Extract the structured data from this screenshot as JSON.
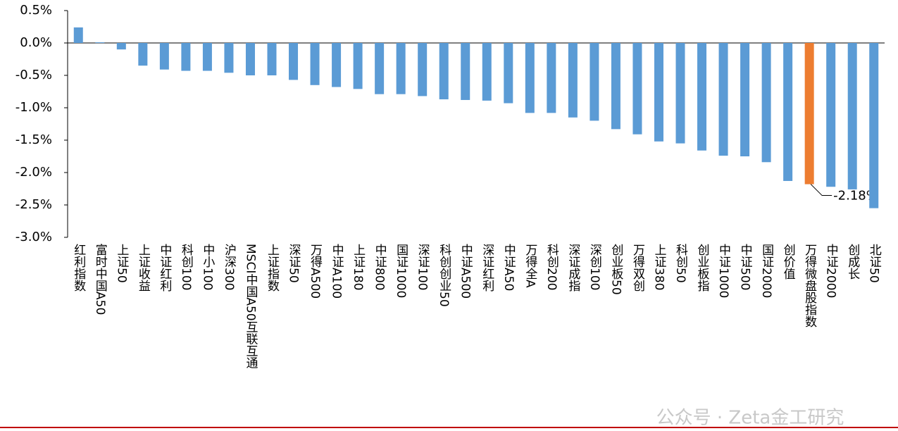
{
  "chart_data": {
    "type": "bar",
    "categories": [
      "红利指数",
      "富时中国A50",
      "上证50",
      "上证收益",
      "中证红利",
      "科创100",
      "中小100",
      "沪深300",
      "MSCI中国A50互联互通",
      "上证指数",
      "深证50",
      "万得A500",
      "中证A100",
      "上证180",
      "中证800",
      "国证1000",
      "深证100",
      "科创创业50",
      "中证A500",
      "深证红利",
      "中证A50",
      "万得全A",
      "科创200",
      "深证成指",
      "深创100",
      "创业板50",
      "万得双创",
      "上证380",
      "科创50",
      "创业板指",
      "中证1000",
      "中证500",
      "国证2000",
      "创价值",
      "万得微盘股指数",
      "中证2000",
      "创成长",
      "北证50"
    ],
    "values": [
      0.24,
      0.01,
      -0.1,
      -0.35,
      -0.41,
      -0.43,
      -0.43,
      -0.46,
      -0.5,
      -0.5,
      -0.57,
      -0.65,
      -0.68,
      -0.71,
      -0.79,
      -0.79,
      -0.82,
      -0.87,
      -0.88,
      -0.89,
      -0.93,
      -1.08,
      -1.08,
      -1.15,
      -1.2,
      -1.33,
      -1.41,
      -1.52,
      -1.55,
      -1.66,
      -1.74,
      -1.75,
      -1.84,
      -2.13,
      -2.18,
      -2.22,
      -2.26,
      -2.55
    ],
    "value_labels": [
      null,
      null,
      null,
      null,
      null,
      null,
      null,
      null,
      null,
      null,
      null,
      null,
      null,
      null,
      null,
      null,
      null,
      null,
      null,
      null,
      null,
      null,
      null,
      null,
      null,
      null,
      null,
      null,
      null,
      null,
      null,
      null,
      null,
      null,
      "-2.18%",
      null,
      null,
      null
    ],
    "colors": [
      "#5b9bd5",
      "#5b9bd5",
      "#5b9bd5",
      "#5b9bd5",
      "#5b9bd5",
      "#5b9bd5",
      "#5b9bd5",
      "#5b9bd5",
      "#5b9bd5",
      "#5b9bd5",
      "#5b9bd5",
      "#5b9bd5",
      "#5b9bd5",
      "#5b9bd5",
      "#5b9bd5",
      "#5b9bd5",
      "#5b9bd5",
      "#5b9bd5",
      "#5b9bd5",
      "#5b9bd5",
      "#5b9bd5",
      "#5b9bd5",
      "#5b9bd5",
      "#5b9bd5",
      "#5b9bd5",
      "#5b9bd5",
      "#5b9bd5",
      "#5b9bd5",
      "#5b9bd5",
      "#5b9bd5",
      "#5b9bd5",
      "#5b9bd5",
      "#5b9bd5",
      "#5b9bd5",
      "#ed7d31",
      "#5b9bd5",
      "#5b9bd5",
      "#5b9bd5"
    ],
    "ylim": [
      -3.0,
      0.5
    ],
    "yticks": [
      {
        "value": 0.5,
        "label": "0.5%"
      },
      {
        "value": 0.0,
        "label": "0.0%"
      },
      {
        "value": -0.5,
        "label": "-0.5%"
      },
      {
        "value": -1.0,
        "label": "-1.0%"
      },
      {
        "value": -1.5,
        "label": "-1.5%"
      },
      {
        "value": -2.0,
        "label": "-2.0%"
      },
      {
        "value": -2.5,
        "label": "-2.5%"
      },
      {
        "value": -3.0,
        "label": "-3.0%"
      }
    ],
    "watermark": "公众号 · Zeta金工研究"
  }
}
